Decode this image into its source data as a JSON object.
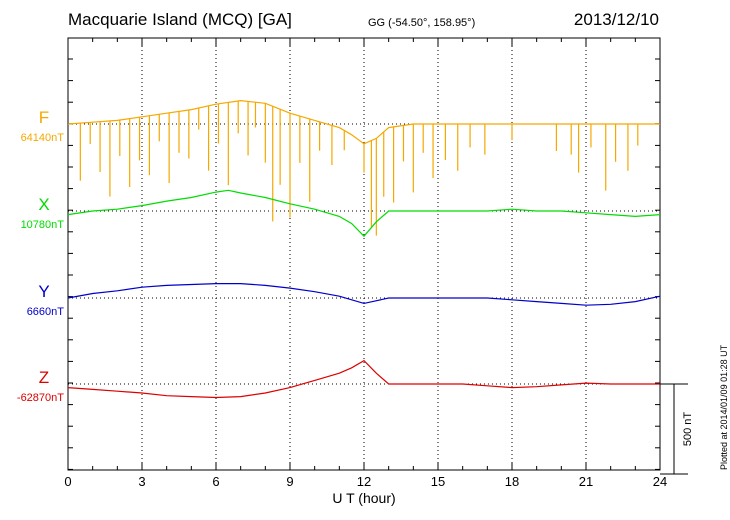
{
  "header": {
    "station": "Macquarie Island (MCQ)  [GA]",
    "coords": "GG (-54.50°, 158.95°)",
    "date": "2013/12/10"
  },
  "plotted_note": "Plotted at 2014/01/09 01:28 UT",
  "colors": {
    "F": "#f5a800",
    "X": "#00dd00",
    "Y": "#0000cc",
    "Z": "#dd0000"
  },
  "chart_data": {
    "type": "line",
    "title": "Macquarie Island (MCQ)  [GA]",
    "xlabel": "U T (hour)",
    "ylabel": "",
    "xlim": [
      0,
      24
    ],
    "xticks": [
      0,
      3,
      6,
      9,
      12,
      15,
      18,
      21,
      24
    ],
    "x_tick_labels": [
      "0",
      "3",
      "6",
      "9",
      "12",
      "15",
      "18",
      "21",
      "24"
    ],
    "scale_bar_label": "500 nT",
    "scale_bar_nT": 500,
    "grid": "dotted",
    "series": [
      {
        "key": "F",
        "name": "F",
        "baseline_label": "64140nT",
        "baseline_nT": 64140,
        "x": [
          0,
          1,
          2,
          3,
          4,
          5,
          6,
          7,
          8,
          9,
          10,
          11,
          11.5,
          12,
          12.5,
          13,
          14,
          15,
          16,
          17,
          18,
          19,
          20,
          21,
          22,
          23,
          24
        ],
        "values": [
          0,
          10,
          20,
          40,
          60,
          80,
          110,
          130,
          115,
          60,
          20,
          -20,
          -60,
          -110,
          -80,
          -20,
          0,
          0,
          0,
          0,
          0,
          0,
          0,
          0,
          0,
          0,
          0
        ],
        "spikes": [
          {
            "x": 0.5,
            "depth": 320
          },
          {
            "x": 0.9,
            "depth": 120
          },
          {
            "x": 1.3,
            "depth": 280
          },
          {
            "x": 1.7,
            "depth": 420
          },
          {
            "x": 2.1,
            "depth": 200
          },
          {
            "x": 2.5,
            "depth": 380
          },
          {
            "x": 2.9,
            "depth": 240
          },
          {
            "x": 3.3,
            "depth": 330
          },
          {
            "x": 3.7,
            "depth": 150
          },
          {
            "x": 4.1,
            "depth": 390
          },
          {
            "x": 4.5,
            "depth": 230
          },
          {
            "x": 4.9,
            "depth": 270
          },
          {
            "x": 5.3,
            "depth": 120
          },
          {
            "x": 5.7,
            "depth": 360
          },
          {
            "x": 6.1,
            "depth": 220
          },
          {
            "x": 6.5,
            "depth": 460
          },
          {
            "x": 6.9,
            "depth": 180
          },
          {
            "x": 7.3,
            "depth": 300
          },
          {
            "x": 7.6,
            "depth": 140
          },
          {
            "x": 8.0,
            "depth": 330
          },
          {
            "x": 8.3,
            "depth": 640
          },
          {
            "x": 8.6,
            "depth": 420
          },
          {
            "x": 9.0,
            "depth": 580
          },
          {
            "x": 9.4,
            "depth": 260
          },
          {
            "x": 9.8,
            "depth": 460
          },
          {
            "x": 10.2,
            "depth": 160
          },
          {
            "x": 10.7,
            "depth": 220
          },
          {
            "x": 11.2,
            "depth": 110
          },
          {
            "x": 12.0,
            "depth": 160
          },
          {
            "x": 12.3,
            "depth": 480
          },
          {
            "x": 12.5,
            "depth": 540
          },
          {
            "x": 12.8,
            "depth": 360
          },
          {
            "x": 13.2,
            "depth": 420
          },
          {
            "x": 13.6,
            "depth": 200
          },
          {
            "x": 14.0,
            "depth": 380
          },
          {
            "x": 14.4,
            "depth": 160
          },
          {
            "x": 14.8,
            "depth": 300
          },
          {
            "x": 15.3,
            "depth": 200
          },
          {
            "x": 15.8,
            "depth": 260
          },
          {
            "x": 16.3,
            "depth": 130
          },
          {
            "x": 16.9,
            "depth": 170
          },
          {
            "x": 18.0,
            "depth": 90
          },
          {
            "x": 19.8,
            "depth": 150
          },
          {
            "x": 20.4,
            "depth": 170
          },
          {
            "x": 20.7,
            "depth": 270
          },
          {
            "x": 21.2,
            "depth": 130
          },
          {
            "x": 21.8,
            "depth": 370
          },
          {
            "x": 22.2,
            "depth": 210
          },
          {
            "x": 22.7,
            "depth": 260
          },
          {
            "x": 23.1,
            "depth": 120
          }
        ]
      },
      {
        "key": "X",
        "name": "X",
        "baseline_label": "10780nT",
        "baseline_nT": 10780,
        "x": [
          0,
          1,
          2,
          3,
          4,
          5,
          6,
          6.5,
          7,
          8,
          9,
          10,
          11,
          11.5,
          12,
          12.5,
          13,
          14,
          15,
          16,
          17,
          18,
          19,
          20,
          21,
          22,
          23,
          24
        ],
        "values": [
          -20,
          0,
          10,
          30,
          55,
          75,
          105,
          115,
          100,
          75,
          40,
          10,
          -30,
          -70,
          -140,
          -60,
          0,
          0,
          0,
          0,
          0,
          10,
          0,
          0,
          -10,
          -20,
          -30,
          -20
        ]
      },
      {
        "key": "Y",
        "name": "Y",
        "baseline_label": "6660nT",
        "baseline_nT": 6660,
        "x": [
          0,
          1,
          2,
          3,
          4,
          5,
          6,
          7,
          8,
          9,
          10,
          11,
          12,
          13,
          14,
          15,
          16,
          17,
          18,
          19,
          20,
          21,
          22,
          23,
          24
        ],
        "values": [
          0,
          25,
          40,
          60,
          70,
          75,
          80,
          80,
          70,
          55,
          35,
          10,
          -30,
          0,
          0,
          0,
          0,
          0,
          -10,
          -20,
          -30,
          -40,
          -35,
          -20,
          10
        ]
      },
      {
        "key": "Z",
        "name": "Z",
        "baseline_label": "-62870nT",
        "baseline_nT": -62870,
        "x": [
          0,
          1,
          2,
          3,
          4,
          5,
          6,
          7,
          8,
          9,
          10,
          11,
          11.5,
          12,
          12.5,
          13,
          14,
          15,
          16,
          17,
          18,
          19,
          20,
          21,
          22,
          23,
          24
        ],
        "values": [
          -20,
          -30,
          -40,
          -50,
          -65,
          -70,
          -75,
          -70,
          -50,
          -20,
          20,
          60,
          90,
          130,
          60,
          0,
          0,
          0,
          0,
          -10,
          -20,
          -15,
          -5,
          5,
          0,
          0,
          0
        ]
      }
    ]
  }
}
